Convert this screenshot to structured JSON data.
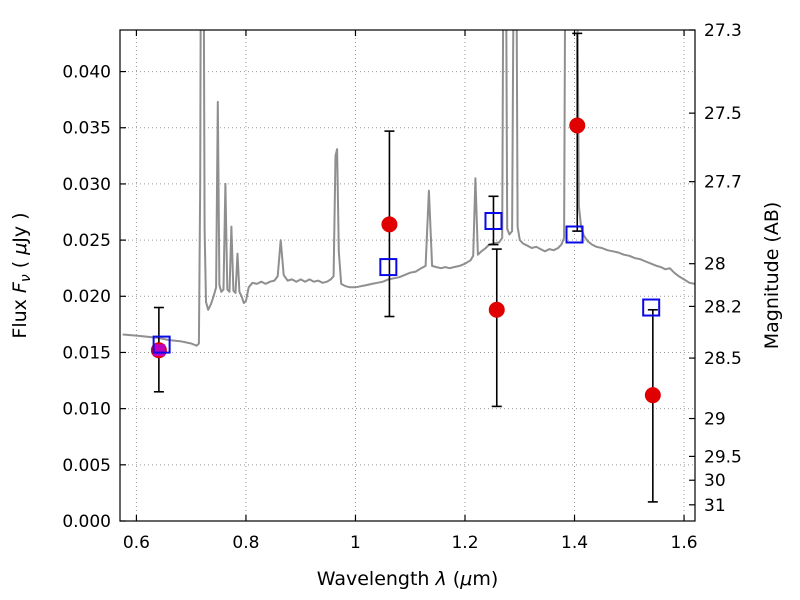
{
  "figure": {
    "background": "#ffffff",
    "frame_color": "#000000"
  },
  "chart_data": {
    "type": "line",
    "description": "Galaxy SED: gray model spectrum with emission lines; red filled circles = photometry with black error bars; blue open squares = model band fluxes; magenta filled square at first band. Left axis flux (uJy), right axis AB magnitude.",
    "title": "",
    "xlabel_parts": [
      {
        "t": "Wavelength  ",
        "i": false,
        "sub": false
      },
      {
        "t": "λ",
        "i": true,
        "sub": false
      },
      {
        "t": " (",
        "i": false,
        "sub": false
      },
      {
        "t": "μ",
        "i": true,
        "sub": false
      },
      {
        "t": "m)",
        "i": false,
        "sub": false
      }
    ],
    "ylabel_left_parts": [
      {
        "t": "Flux  ",
        "i": false,
        "sub": false
      },
      {
        "t": "F",
        "i": true,
        "sub": false
      },
      {
        "t": "ν",
        "i": true,
        "sub": true
      },
      {
        "t": " ( ",
        "i": false,
        "sub": false
      },
      {
        "t": "μ",
        "i": true,
        "sub": false
      },
      {
        "t": "Jy )",
        "i": false,
        "sub": false
      }
    ],
    "ylabel_right": "Magnitude (AB)",
    "xlim": [
      0.57,
      1.62
    ],
    "ylim": [
      0.0,
      0.0437
    ],
    "grid": {
      "on": true,
      "style": "dotted",
      "color": "#999999"
    },
    "x_ticks": [
      {
        "v": 0.6,
        "label": "0.6"
      },
      {
        "v": 0.8,
        "label": "0.8"
      },
      {
        "v": 1.0,
        "label": "1"
      },
      {
        "v": 1.2,
        "label": "1.2"
      },
      {
        "v": 1.4,
        "label": "1.4"
      },
      {
        "v": 1.6,
        "label": "1.6"
      }
    ],
    "y_ticks_left": [
      {
        "v": 0.0,
        "label": "0.000"
      },
      {
        "v": 0.005,
        "label": "0.005"
      },
      {
        "v": 0.01,
        "label": "0.010"
      },
      {
        "v": 0.015,
        "label": "0.015"
      },
      {
        "v": 0.02,
        "label": "0.020"
      },
      {
        "v": 0.025,
        "label": "0.025"
      },
      {
        "v": 0.03,
        "label": "0.030"
      },
      {
        "v": 0.035,
        "label": "0.035"
      },
      {
        "v": 0.04,
        "label": "0.040"
      }
    ],
    "y_ticks_right": [
      {
        "label": "27.3",
        "flux": 0.0437
      },
      {
        "label": "27.5",
        "flux": 0.0363
      },
      {
        "label": "27.7",
        "flux": 0.0302
      },
      {
        "label": "28",
        "flux": 0.0229
      },
      {
        "label": "28.2",
        "flux": 0.0191
      },
      {
        "label": "28.5",
        "flux": 0.0145
      },
      {
        "label": "29",
        "flux": 0.00912
      },
      {
        "label": "29.5",
        "flux": 0.00575
      },
      {
        "label": "30",
        "flux": 0.00363
      },
      {
        "label": "31",
        "flux": 0.00144
      }
    ],
    "errorbar": {
      "color": "#000000",
      "linewidth": 1.6,
      "capwidth": 10
    },
    "spectrum": {
      "name": "model-spectrum",
      "color": "#8f8f8f",
      "linewidth": 2,
      "points": [
        [
          0.575,
          0.0166
        ],
        [
          0.6,
          0.0165
        ],
        [
          0.62,
          0.0164
        ],
        [
          0.64,
          0.0163
        ],
        [
          0.66,
          0.0161
        ],
        [
          0.68,
          0.016
        ],
        [
          0.7,
          0.0158
        ],
        [
          0.71,
          0.0156
        ],
        [
          0.714,
          0.0158
        ],
        [
          0.7165,
          0.03
        ],
        [
          0.718,
          0.055
        ],
        [
          0.7225,
          0.055
        ],
        [
          0.7245,
          0.026
        ],
        [
          0.727,
          0.0195
        ],
        [
          0.731,
          0.0188
        ],
        [
          0.736,
          0.0193
        ],
        [
          0.741,
          0.02
        ],
        [
          0.7455,
          0.0208
        ],
        [
          0.7485,
          0.0373
        ],
        [
          0.7515,
          0.021
        ],
        [
          0.755,
          0.0204
        ],
        [
          0.759,
          0.0206
        ],
        [
          0.7625,
          0.03
        ],
        [
          0.766,
          0.0206
        ],
        [
          0.77,
          0.0204
        ],
        [
          0.7735,
          0.0262
        ],
        [
          0.777,
          0.0205
        ],
        [
          0.781,
          0.0203
        ],
        [
          0.7845,
          0.0238
        ],
        [
          0.788,
          0.0204
        ],
        [
          0.792,
          0.02
        ],
        [
          0.796,
          0.0194
        ],
        [
          0.8,
          0.0196
        ],
        [
          0.805,
          0.0208
        ],
        [
          0.812,
          0.0212
        ],
        [
          0.82,
          0.0211
        ],
        [
          0.828,
          0.0213
        ],
        [
          0.836,
          0.0211
        ],
        [
          0.844,
          0.0213
        ],
        [
          0.852,
          0.0214
        ],
        [
          0.858,
          0.0218
        ],
        [
          0.8635,
          0.025
        ],
        [
          0.869,
          0.0219
        ],
        [
          0.876,
          0.0214
        ],
        [
          0.884,
          0.0215
        ],
        [
          0.892,
          0.0213
        ],
        [
          0.9,
          0.0215
        ],
        [
          0.908,
          0.0213
        ],
        [
          0.916,
          0.0215
        ],
        [
          0.924,
          0.0213
        ],
        [
          0.932,
          0.0214
        ],
        [
          0.94,
          0.0212
        ],
        [
          0.948,
          0.0213
        ],
        [
          0.955,
          0.0215
        ],
        [
          0.96,
          0.0218
        ],
        [
          0.9635,
          0.0325
        ],
        [
          0.9665,
          0.0331
        ],
        [
          0.9695,
          0.024
        ],
        [
          0.974,
          0.0211
        ],
        [
          0.982,
          0.0209
        ],
        [
          0.99,
          0.0208
        ],
        [
          1.0,
          0.0208
        ],
        [
          1.01,
          0.0209
        ],
        [
          1.02,
          0.021
        ],
        [
          1.03,
          0.0211
        ],
        [
          1.04,
          0.0212
        ],
        [
          1.05,
          0.0213
        ],
        [
          1.06,
          0.0215
        ],
        [
          1.07,
          0.0216
        ],
        [
          1.08,
          0.0217
        ],
        [
          1.09,
          0.0219
        ],
        [
          1.1,
          0.0221
        ],
        [
          1.11,
          0.0222
        ],
        [
          1.12,
          0.0225
        ],
        [
          1.128,
          0.0227
        ],
        [
          1.134,
          0.0294
        ],
        [
          1.14,
          0.0227
        ],
        [
          1.148,
          0.0226
        ],
        [
          1.156,
          0.0225
        ],
        [
          1.164,
          0.0226
        ],
        [
          1.172,
          0.0225
        ],
        [
          1.18,
          0.0226
        ],
        [
          1.19,
          0.0227
        ],
        [
          1.2,
          0.0229
        ],
        [
          1.21,
          0.0232
        ],
        [
          1.215,
          0.0236
        ],
        [
          1.219,
          0.0305
        ],
        [
          1.2235,
          0.0237
        ],
        [
          1.23,
          0.024
        ],
        [
          1.238,
          0.0243
        ],
        [
          1.244,
          0.0246
        ],
        [
          1.252,
          0.0247
        ],
        [
          1.262,
          0.0248
        ],
        [
          1.268,
          0.0252
        ],
        [
          1.2705,
          0.055
        ],
        [
          1.2745,
          0.055
        ],
        [
          1.277,
          0.026
        ],
        [
          1.281,
          0.0255
        ],
        [
          1.286,
          0.0258
        ],
        [
          1.2895,
          0.055
        ],
        [
          1.2935,
          0.055
        ],
        [
          1.296,
          0.0262
        ],
        [
          1.3,
          0.025
        ],
        [
          1.306,
          0.0247
        ],
        [
          1.314,
          0.0245
        ],
        [
          1.322,
          0.0243
        ],
        [
          1.33,
          0.0244
        ],
        [
          1.338,
          0.0242
        ],
        [
          1.346,
          0.024
        ],
        [
          1.354,
          0.0242
        ],
        [
          1.362,
          0.0241
        ],
        [
          1.37,
          0.0243
        ],
        [
          1.376,
          0.0246
        ],
        [
          1.381,
          0.0252
        ],
        [
          1.3835,
          0.055
        ],
        [
          1.404,
          0.055
        ],
        [
          1.408,
          0.028
        ],
        [
          1.412,
          0.0262
        ],
        [
          1.417,
          0.0254
        ],
        [
          1.424,
          0.0249
        ],
        [
          1.432,
          0.0246
        ],
        [
          1.44,
          0.0244
        ],
        [
          1.45,
          0.0243
        ],
        [
          1.46,
          0.0241
        ],
        [
          1.47,
          0.024
        ],
        [
          1.48,
          0.0239
        ],
        [
          1.49,
          0.0237
        ],
        [
          1.5,
          0.0236
        ],
        [
          1.51,
          0.0234
        ],
        [
          1.52,
          0.0233
        ],
        [
          1.53,
          0.0231
        ],
        [
          1.54,
          0.0229
        ],
        [
          1.55,
          0.0227
        ],
        [
          1.558,
          0.0226
        ],
        [
          1.566,
          0.0224
        ],
        [
          1.574,
          0.0225
        ],
        [
          1.582,
          0.0221
        ],
        [
          1.59,
          0.0218
        ],
        [
          1.6,
          0.0215
        ],
        [
          1.61,
          0.0212
        ],
        [
          1.62,
          0.0211
        ]
      ]
    },
    "series": [
      {
        "name": "photometry-red-circles",
        "marker": "circle",
        "color": "#e00000",
        "size": 15,
        "points": [
          {
            "x": 0.641,
            "y": 0.0152,
            "lo": 0.0115,
            "hi": 0.019
          },
          {
            "x": 1.062,
            "y": 0.0264,
            "lo": 0.0182,
            "hi": 0.0347
          },
          {
            "x": 1.258,
            "y": 0.0188,
            "lo": 0.0102,
            "hi": 0.0242
          },
          {
            "x": 1.405,
            "y": 0.0352,
            "lo": 0.0258,
            "hi": 0.0434
          },
          {
            "x": 1.543,
            "y": 0.0112,
            "lo": 0.0017,
            "hi": 0.0188
          }
        ]
      },
      {
        "name": "model-blue-open-squares",
        "marker": "square-open",
        "color": "#0a0ae6",
        "size": 16,
        "points": [
          {
            "x": 0.646,
            "y": 0.0157
          },
          {
            "x": 1.06,
            "y": 0.0226
          },
          {
            "x": 1.252,
            "y": 0.0267,
            "lo": 0.0246,
            "hi": 0.0289
          },
          {
            "x": 1.4,
            "y": 0.0255
          },
          {
            "x": 1.54,
            "y": 0.019
          }
        ]
      },
      {
        "name": "magenta-filled-square",
        "marker": "square-filled",
        "color": "#bf00bf",
        "size": 12,
        "points": [
          {
            "x": 0.641,
            "y": 0.0152
          }
        ]
      }
    ]
  }
}
